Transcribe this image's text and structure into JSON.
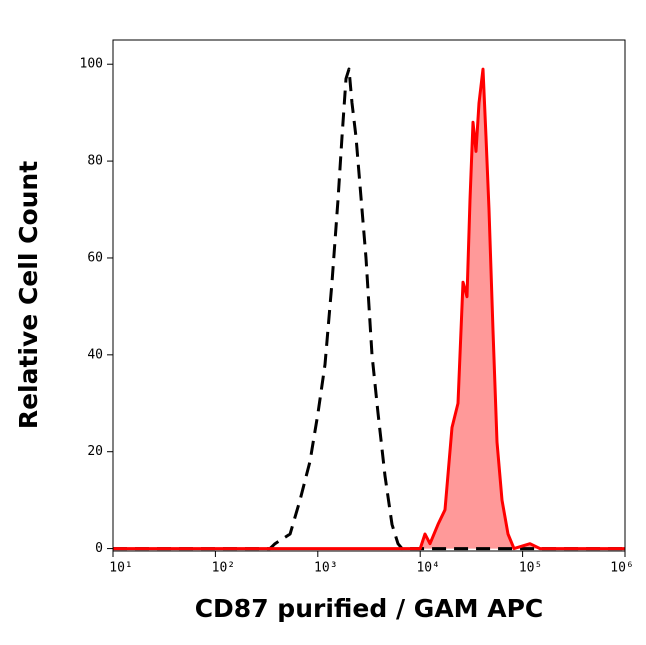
{
  "chart_data": {
    "type": "histogram_overlay",
    "xlabel": "CD87 purified / GAM APC",
    "ylabel": "Relative Cell Count",
    "xscale": "log",
    "xlim": [
      10,
      1000000
    ],
    "ylim": [
      -0.5,
      105
    ],
    "xticks": [
      {
        "value": 10,
        "label": "10¹"
      },
      {
        "value": 100,
        "label": "10²"
      },
      {
        "value": 1000,
        "label": "10³"
      },
      {
        "value": 10000,
        "label": "10⁴"
      },
      {
        "value": 100000,
        "label": "10⁵"
      },
      {
        "value": 1000000,
        "label": "10⁶"
      }
    ],
    "yticks": [
      0,
      20,
      40,
      60,
      80,
      100
    ],
    "series": [
      {
        "color": "#000000",
        "line_style": "dashed",
        "fill": null,
        "x": [
          10,
          341,
          382,
          536,
          670,
          839,
          1005,
          1175,
          1377,
          1574,
          1722,
          1884,
          2018,
          2158,
          2361,
          2582,
          2958,
          3381,
          3873,
          4529,
          5309,
          6067,
          6637,
          1000000
        ],
        "values": [
          0,
          0,
          1,
          3,
          10,
          18,
          28,
          38,
          55,
          72,
          85,
          97,
          99,
          92,
          85,
          75,
          60,
          40,
          28,
          15,
          5,
          1,
          0,
          0
        ]
      },
      {
        "color": "#ff0000",
        "line_style": "solid",
        "fill": "#ff9999",
        "x": [
          10,
          10000,
          11140,
          12470,
          14930,
          17460,
          20460,
          23390,
          26180,
          28640,
          30620,
          32810,
          35080,
          37500,
          41020,
          43950,
          46990,
          51400,
          56230,
          62950,
          71940,
          82410,
          118000,
          148000,
          1000000
        ],
        "values": [
          0,
          0,
          3,
          1,
          5,
          8,
          25,
          30,
          55,
          52,
          72,
          88,
          82,
          92,
          99,
          85,
          70,
          45,
          22,
          10,
          3,
          0,
          1,
          0,
          0
        ]
      }
    ]
  }
}
